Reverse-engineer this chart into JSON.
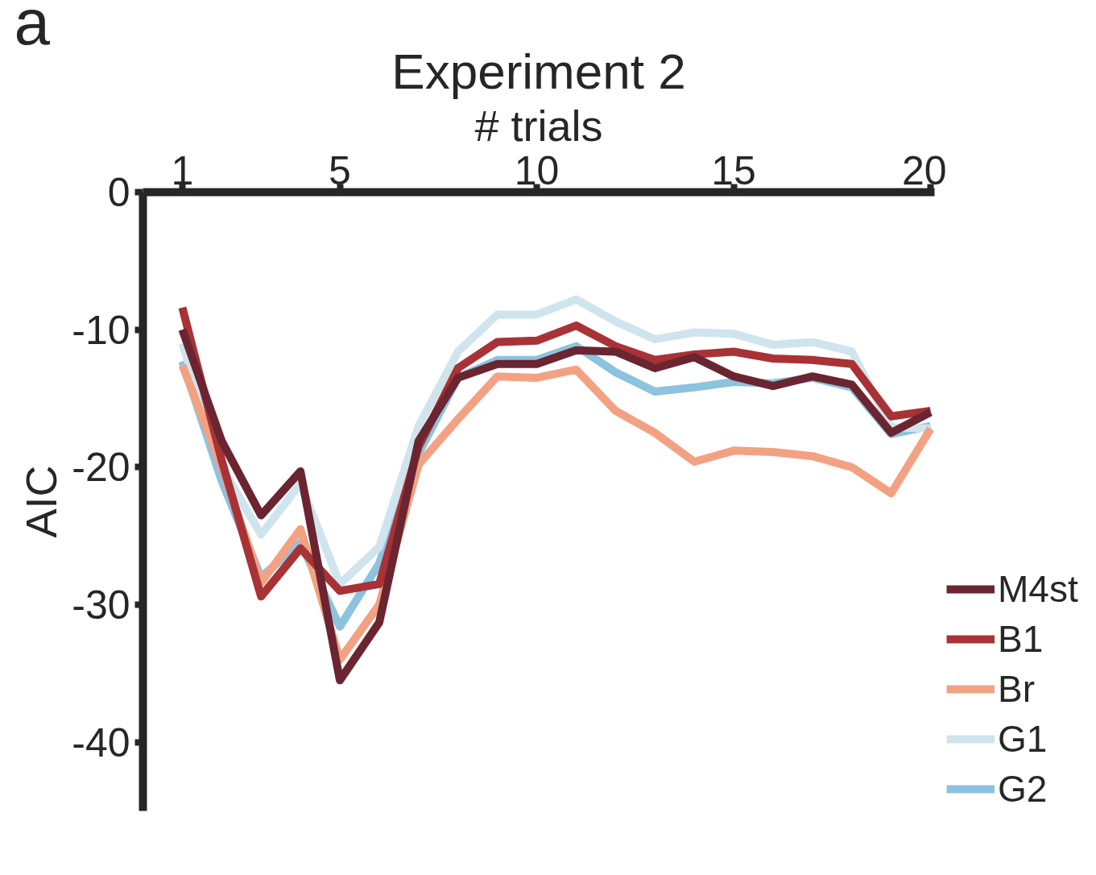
{
  "chart_data": {
    "type": "line",
    "title": "Experiment 2",
    "xlabel": "# trials",
    "ylabel": "AIC",
    "annotations": [
      "a"
    ],
    "x": [
      1,
      2,
      3,
      4,
      5,
      6,
      7,
      8,
      9,
      10,
      11,
      12,
      13,
      14,
      15,
      16,
      17,
      18,
      19,
      20
    ],
    "xlim": [
      0,
      20.1
    ],
    "xticks": [
      1,
      5,
      10,
      15,
      20
    ],
    "ylim": [
      -45,
      0
    ],
    "yticks": [
      0,
      -10,
      -20,
      -30,
      -40
    ],
    "grid": false,
    "legend": "bottom right",
    "marker": "none",
    "line_style": "solid",
    "series": [
      {
        "name": "M4st",
        "color": "#6b2530",
        "values": [
          -10,
          -18.1,
          -23.5,
          -20.3,
          -35.5,
          -31.3,
          -18.1,
          -13.5,
          -12.5,
          -12.5,
          -11.5,
          -11.6,
          -12.8,
          -12,
          -13.4,
          -14.1,
          -13.4,
          -14,
          -17.5,
          -16
        ]
      },
      {
        "name": "B1",
        "color": "#a83236",
        "values": [
          -8.4,
          -19.5,
          -29.4,
          -25.9,
          -29,
          -28.5,
          -18.5,
          -12.8,
          -10.9,
          -10.8,
          -9.7,
          -11.2,
          -12.2,
          -11.8,
          -11.6,
          -12.1,
          -12.2,
          -12.5,
          -16.3,
          -15.9
        ]
      },
      {
        "name": "Br",
        "color": "#f2a283",
        "values": [
          -12.6,
          -20,
          -28.4,
          -24.5,
          -34,
          -30,
          -19.8,
          -16.5,
          -13.4,
          -13.5,
          -12.9,
          -15.9,
          -17.5,
          -19.6,
          -18.8,
          -18.9,
          -19.2,
          -20,
          -21.9,
          -17.2
        ]
      },
      {
        "name": "G1",
        "color": "#d0e4ee",
        "values": [
          -11,
          -20,
          -24.9,
          -21.2,
          -28.5,
          -25.8,
          -17,
          -11.6,
          -8.9,
          -8.9,
          -7.8,
          -9.4,
          -10.7,
          -10.2,
          -10.3,
          -11.1,
          -10.9,
          -11.6,
          -17.1,
          -17.2
        ]
      },
      {
        "name": "G2",
        "color": "#8cc3de",
        "values": [
          -12.3,
          -21,
          -28,
          -25.5,
          -31.6,
          -27,
          -19,
          -13.5,
          -12.2,
          -12.2,
          -11.2,
          -13.1,
          -14.5,
          -14.2,
          -13.8,
          -13.9,
          -13.5,
          -14.2,
          -17.6,
          -17
        ]
      }
    ]
  }
}
